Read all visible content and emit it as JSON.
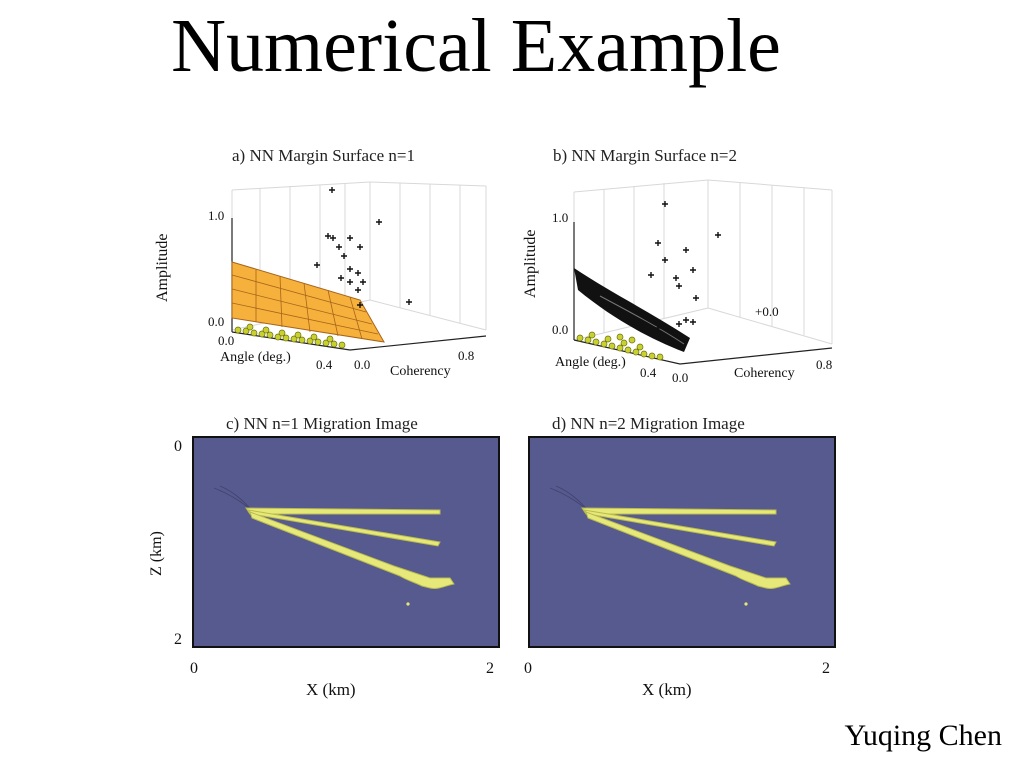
{
  "slide": {
    "title": "Numerical Example",
    "author": "Yuqing Chen"
  },
  "panels": {
    "a": {
      "title": "a) NN Margin Surface n=1",
      "zlabel": "Amplitude",
      "xlabel": "Angle (deg.)",
      "ylabel": "Coherency",
      "z_ticks": [
        "1.0",
        "0.0"
      ],
      "x_ticks": [
        "0.0",
        "0.4"
      ],
      "y_ticks": [
        "0.0",
        "0.8"
      ]
    },
    "b": {
      "title": "b) NN Margin Surface n=2",
      "zlabel": "Amplitude",
      "xlabel": "Angle (deg.)",
      "ylabel": "Coherency",
      "z_ticks": [
        "1.0",
        "0.0"
      ],
      "x_ticks": [
        "0.4"
      ],
      "y_ticks": [
        "0.0",
        "0.8"
      ],
      "annotation": "+0.0"
    },
    "c": {
      "title": "c) NN n=1 Migration Image",
      "zlabel": "Z (km)",
      "xlabel": "X (km)",
      "z_ticks": [
        "0",
        "2"
      ],
      "x_ticks": [
        "0",
        "2"
      ]
    },
    "d": {
      "title": "d) NN n=2 Migration Image",
      "xlabel": "X (km)",
      "x_ticks": [
        "0",
        "2"
      ]
    }
  },
  "colors": {
    "migration_bg": "#575a8e",
    "reflector": "#e6e87a",
    "surface": "#f5b13c",
    "points_green": "#c9d12e",
    "surface_b": "#111111"
  }
}
